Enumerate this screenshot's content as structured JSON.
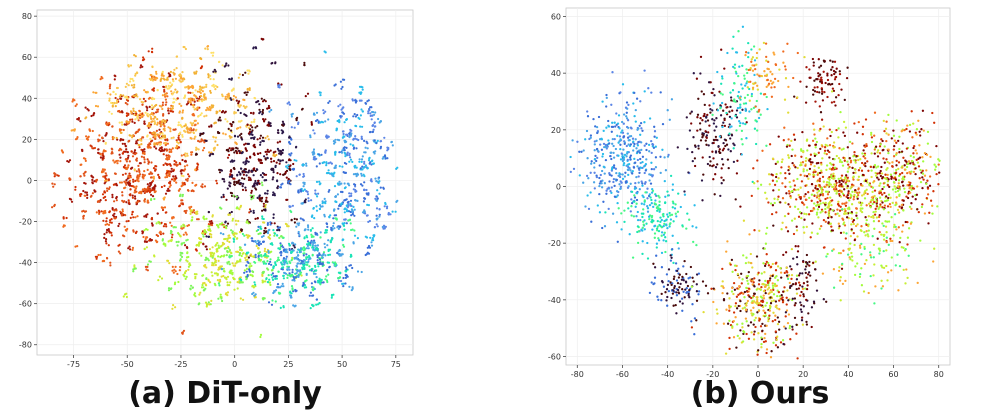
{
  "chart_data": [
    {
      "type": "scatter",
      "caption": "(a) DiT-only",
      "xlim": [
        -92,
        83
      ],
      "ylim": [
        -85,
        83
      ],
      "xticks": [
        -75,
        -50,
        -25,
        0,
        25,
        50,
        75
      ],
      "yticks": [
        80,
        60,
        40,
        20,
        0,
        -20,
        -40,
        -60,
        -80
      ],
      "grid": true,
      "legend": "none",
      "point_count": 1400,
      "cloud": {
        "shape": "disc",
        "center": [
          -5,
          0
        ],
        "radius": [
          82,
          78
        ]
      },
      "palette": "turbo",
      "regions": [
        {
          "center": [
            -45,
            5
          ],
          "spread": [
            22,
            30
          ],
          "colors": [
            "#d23105",
            "#f06b20",
            "#a4150a",
            "#e1531a"
          ],
          "share": 0.28
        },
        {
          "center": [
            -25,
            35
          ],
          "spread": [
            25,
            18
          ],
          "colors": [
            "#fca636",
            "#f9c74f",
            "#ffe066",
            "#f2b134"
          ],
          "share": 0.14
        },
        {
          "center": [
            10,
            10
          ],
          "spread": [
            15,
            25
          ],
          "colors": [
            "#4a0b0b",
            "#7a0403",
            "#30123b",
            "#2b1a4a"
          ],
          "share": 0.13
        },
        {
          "center": [
            52,
            5
          ],
          "spread": [
            18,
            28
          ],
          "colors": [
            "#4aa5e6",
            "#3a6fd8",
            "#28bceb",
            "#5b85e6"
          ],
          "share": 0.17
        },
        {
          "center": [
            -10,
            -35
          ],
          "spread": [
            20,
            16
          ],
          "colors": [
            "#c7ef34",
            "#a2fc3c",
            "#e1dd37",
            "#7cf55a"
          ],
          "share": 0.13
        },
        {
          "center": [
            30,
            -40
          ],
          "spread": [
            20,
            14
          ],
          "colors": [
            "#1ae4b6",
            "#3a6fd8",
            "#4aa5e6",
            "#46f884"
          ],
          "share": 0.15
        }
      ]
    },
    {
      "type": "scatter",
      "caption": "(b) Ours",
      "xlim": [
        -85,
        85
      ],
      "ylim": [
        -63,
        63
      ],
      "xticks": [
        -80,
        -60,
        -40,
        -20,
        0,
        20,
        40,
        60,
        80
      ],
      "yticks": [
        60,
        40,
        20,
        0,
        -20,
        -40,
        -60
      ],
      "grid": true,
      "legend": "none",
      "point_count": 2800,
      "palette": "turbo",
      "regions": [
        {
          "center": [
            -60,
            10
          ],
          "spread": [
            13,
            14
          ],
          "colors": [
            "#4aa5e6",
            "#3a6fd8",
            "#5b85e6",
            "#28bceb"
          ],
          "share": 0.15
        },
        {
          "center": [
            -45,
            -12
          ],
          "spread": [
            10,
            8
          ],
          "colors": [
            "#1ae4b6",
            "#28bceb",
            "#46f884"
          ],
          "share": 0.06
        },
        {
          "center": [
            -35,
            -35
          ],
          "spread": [
            7,
            7
          ],
          "colors": [
            "#3a6fd8",
            "#30123b",
            "#4a0b0b"
          ],
          "share": 0.04
        },
        {
          "center": [
            -20,
            20
          ],
          "spread": [
            8,
            14
          ],
          "colors": [
            "#30123b",
            "#4a0b0b",
            "#2b1a4a",
            "#7a0403"
          ],
          "share": 0.06
        },
        {
          "center": [
            -8,
            30
          ],
          "spread": [
            7,
            12
          ],
          "colors": [
            "#1ae4b6",
            "#46f884",
            "#28bceb"
          ],
          "share": 0.04
        },
        {
          "center": [
            30,
            37
          ],
          "spread": [
            6,
            6
          ],
          "colors": [
            "#7a0403",
            "#a4150a",
            "#4a0b0b"
          ],
          "share": 0.03
        },
        {
          "center": [
            35,
            0
          ],
          "spread": [
            22,
            13
          ],
          "colors": [
            "#a2fc3c",
            "#e1dd37",
            "#f06b20",
            "#7a0403",
            "#d23105",
            "#c7ef34"
          ],
          "share": 0.3
        },
        {
          "center": [
            65,
            5
          ],
          "spread": [
            10,
            12
          ],
          "colors": [
            "#7a0403",
            "#a2fc3c",
            "#fca636",
            "#d23105"
          ],
          "share": 0.08
        },
        {
          "center": [
            0,
            -40
          ],
          "spread": [
            12,
            12
          ],
          "colors": [
            "#d23105",
            "#e1dd37",
            "#fca636",
            "#a2fc3c",
            "#4a0b0b"
          ],
          "share": 0.14
        },
        {
          "center": [
            20,
            -35
          ],
          "spread": [
            6,
            10
          ],
          "colors": [
            "#4a0b0b",
            "#7a0403",
            "#30123b"
          ],
          "share": 0.03
        },
        {
          "center": [
            5,
            40
          ],
          "spread": [
            8,
            8
          ],
          "colors": [
            "#fca636",
            "#e1dd37",
            "#f06b20"
          ],
          "share": 0.03
        },
        {
          "center": [
            50,
            -25
          ],
          "spread": [
            15,
            10
          ],
          "colors": [
            "#a2fc3c",
            "#c7ef34",
            "#46f884",
            "#fca636"
          ],
          "share": 0.04
        }
      ]
    }
  ]
}
